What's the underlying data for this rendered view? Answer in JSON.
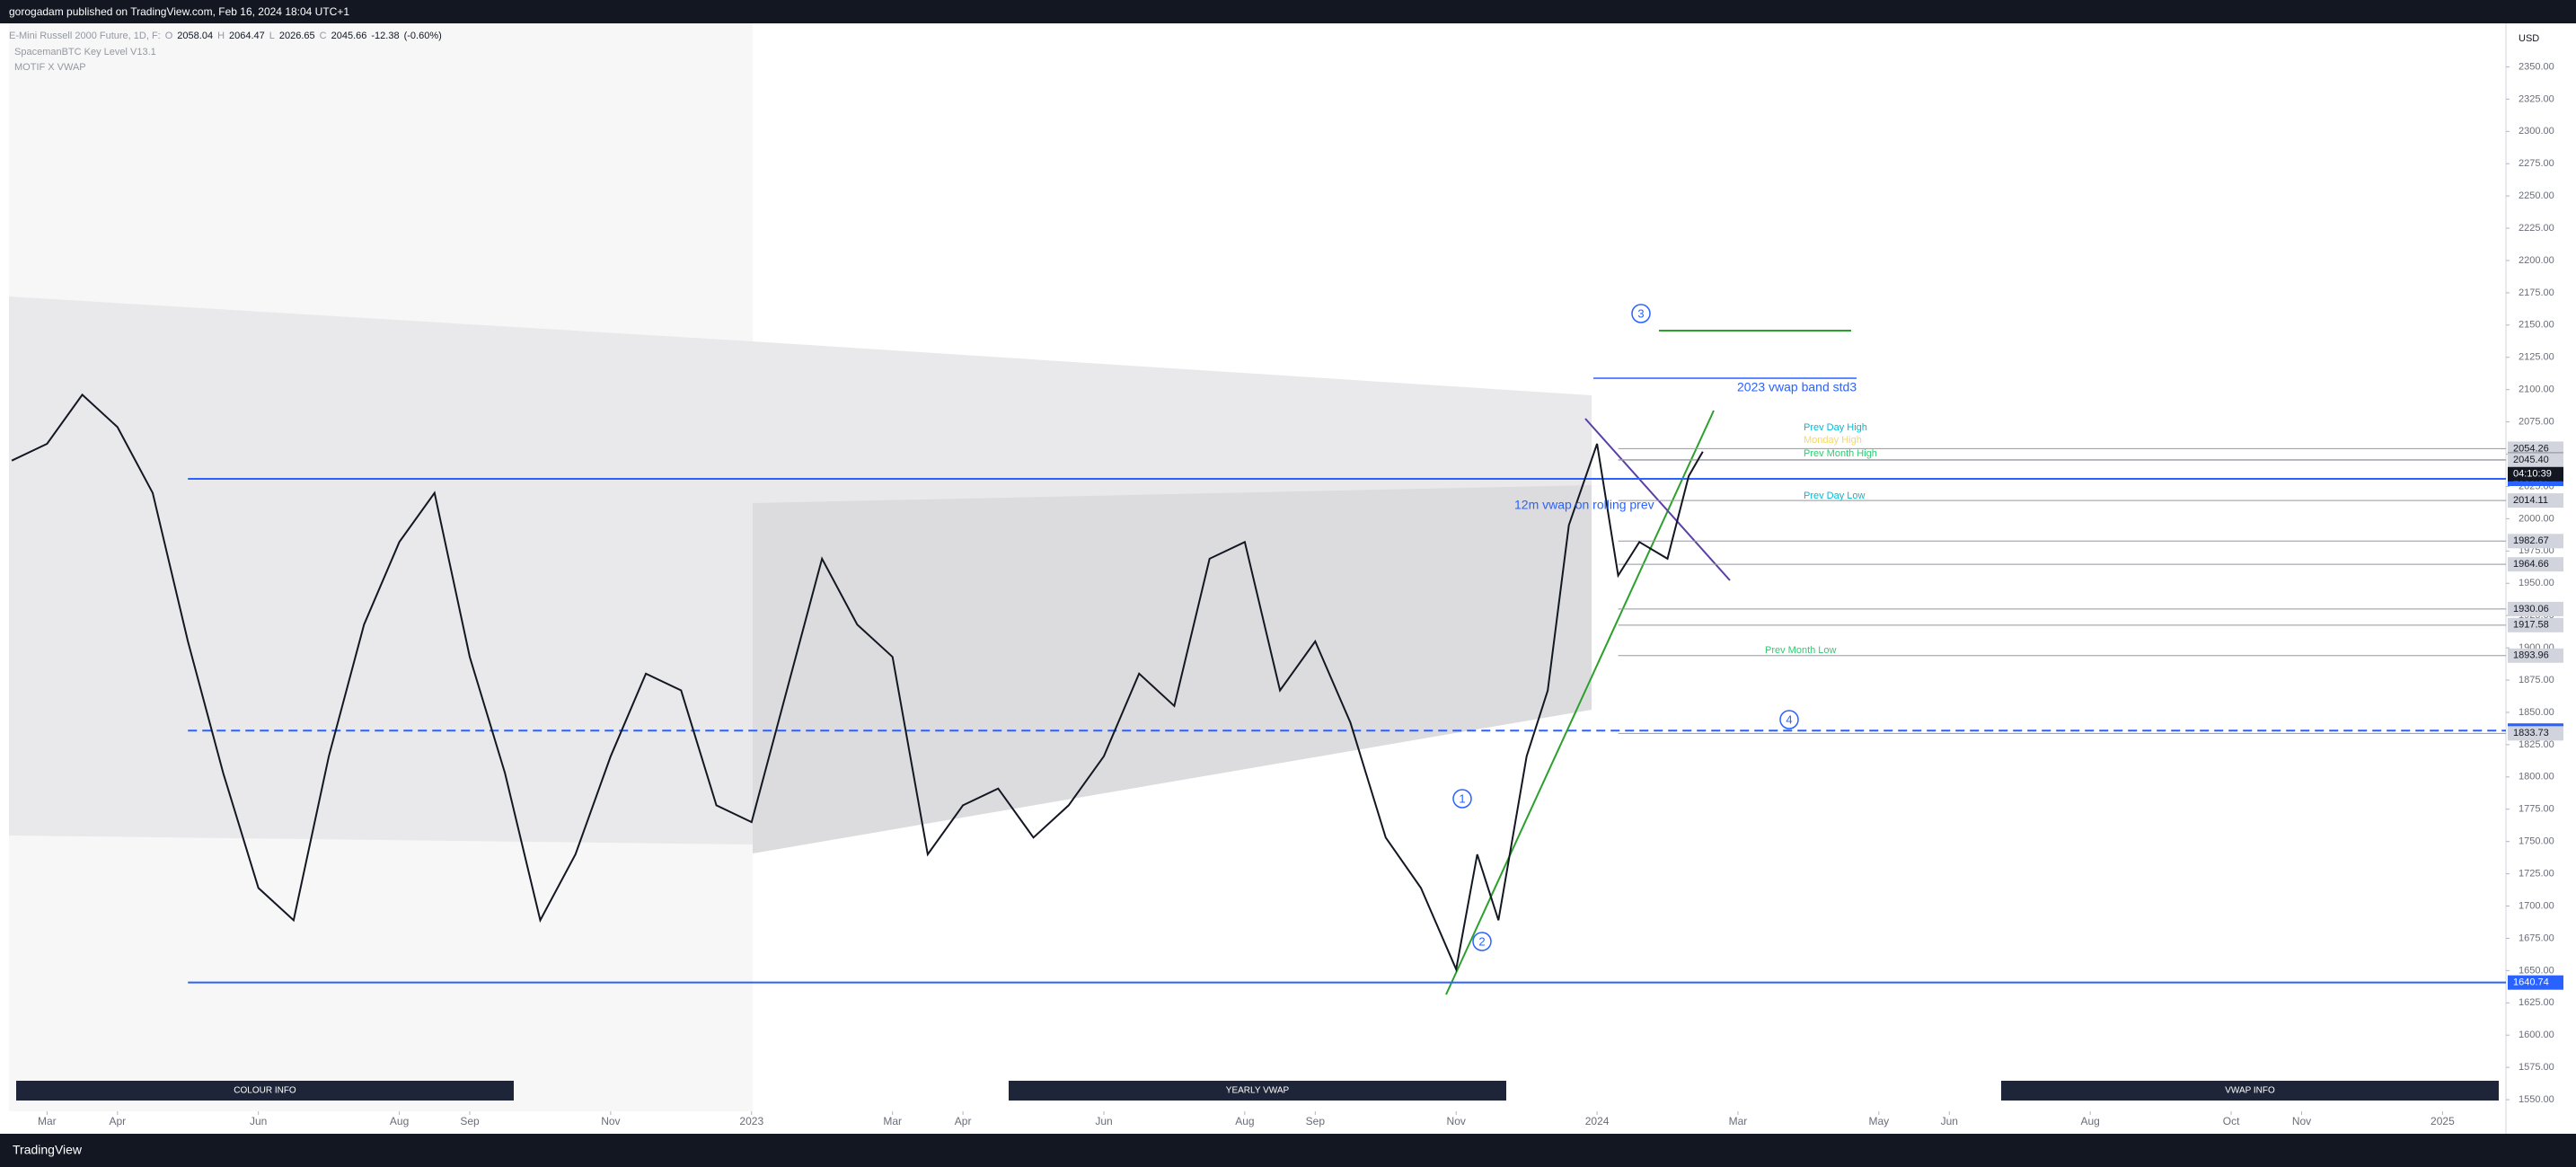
{
  "header": {
    "title": "gorogadam published on TradingView.com, Feb 16, 2024 18:04 UTC+1",
    "brand": "TradingView"
  },
  "chart_data": {
    "type": "line",
    "legend": {
      "symbol": "E-Mini Russell 2000 Future, 1D, F:",
      "open_label": "O",
      "open": 2058.04,
      "high_label": "H",
      "high": 2064.47,
      "low_label": "L",
      "low": 2026.65,
      "close_label": "C",
      "close": 2045.66,
      "change": {
        "value": -12.38,
        "label": "-12.38"
      },
      "change_pct": {
        "value": -0.6,
        "label": "(-0.60%)"
      },
      "indicators": [
        "SpacemanBTC Key Level V13.1",
        "MOTIF X VWAP"
      ]
    },
    "currency": "USD",
    "countdown": "04:10:39",
    "series": [
      {
        "color": "#131722",
        "x": [
          -0.5,
          0,
          0.5,
          1,
          1.5,
          2,
          2.5,
          3,
          3.5,
          4,
          4.5,
          5,
          5.5,
          6,
          6.5,
          7,
          7.5,
          8,
          8.5,
          9,
          9.5,
          10,
          10.5,
          11,
          11.5,
          12,
          12.5,
          13,
          13.5,
          14,
          14.5,
          15,
          15.5,
          16,
          16.5,
          17,
          17.5,
          18,
          18.5,
          19,
          19.5,
          20,
          20.3,
          20.6,
          21,
          21.3,
          21.6,
          22,
          22.3,
          22.6,
          23,
          23.3,
          23.5
        ],
        "values": [
          2045,
          2058,
          2096,
          2071,
          2020,
          1905,
          1803,
          1714,
          1689,
          1816,
          1918,
          1982,
          2020,
          1893,
          1803,
          1689,
          1740,
          1816,
          1880,
          1867,
          1778,
          1765,
          1867,
          1969,
          1918,
          1893,
          1740,
          1778,
          1791,
          1753,
          1778,
          1816,
          1880,
          1855,
          1969,
          1982,
          1867,
          1905,
          1842,
          1753,
          1714,
          1651,
          1740,
          1689,
          1816,
          1867,
          1995,
          2058,
          1956,
          1982,
          1969,
          2033,
          2052
        ]
      }
    ],
    "xlim": [
      -0.54,
      34.9
    ],
    "xticks": [
      {
        "value": 0,
        "label": "Mar"
      },
      {
        "value": 1,
        "label": "Apr"
      },
      {
        "value": 3,
        "label": "Jun"
      },
      {
        "value": 5,
        "label": "Aug"
      },
      {
        "value": 6,
        "label": "Sep"
      },
      {
        "value": 8,
        "label": "Nov"
      },
      {
        "value": 10,
        "label": "2023"
      },
      {
        "value": 12,
        "label": "Mar"
      },
      {
        "value": 13,
        "label": "Apr"
      },
      {
        "value": 15,
        "label": "Jun"
      },
      {
        "value": 17,
        "label": "Aug"
      },
      {
        "value": 18,
        "label": "Sep"
      },
      {
        "value": 20,
        "label": "Nov"
      },
      {
        "value": 22,
        "label": "2024"
      },
      {
        "value": 24,
        "label": "Mar"
      },
      {
        "value": 26,
        "label": "May"
      },
      {
        "value": 27,
        "label": "Jun"
      },
      {
        "value": 29,
        "label": "Aug"
      },
      {
        "value": 31,
        "label": "Oct"
      },
      {
        "value": 32,
        "label": "Nov"
      },
      {
        "value": 34,
        "label": "2025"
      }
    ],
    "ylim": [
      1541,
      2383
    ],
    "yticks": [
      {
        "value": 1550,
        "label": "1550.00"
      },
      {
        "value": 1575,
        "label": "1575.00"
      },
      {
        "value": 1600,
        "label": "1600.00"
      },
      {
        "value": 1625,
        "label": "1625.00"
      },
      {
        "value": 1650,
        "label": "1650.00"
      },
      {
        "value": 1675,
        "label": "1675.00"
      },
      {
        "value": 1700,
        "label": "1700.00"
      },
      {
        "value": 1725,
        "label": "1725.00"
      },
      {
        "value": 1750,
        "label": "1750.00"
      },
      {
        "value": 1775,
        "label": "1775.00"
      },
      {
        "value": 1800,
        "label": "1800.00"
      },
      {
        "value": 1825,
        "label": "1825.00"
      },
      {
        "value": 1850,
        "label": "1850.00"
      },
      {
        "value": 1875,
        "label": "1875.00"
      },
      {
        "value": 1900,
        "label": "1900.00"
      },
      {
        "value": 1925,
        "label": "1925.00"
      },
      {
        "value": 1950,
        "label": "1950.00"
      },
      {
        "value": 1975,
        "label": "1975.00"
      },
      {
        "value": 2000,
        "label": "2000.00"
      },
      {
        "value": 2025,
        "label": "2025.00"
      },
      {
        "value": 2050,
        "label": "2050.00"
      },
      {
        "value": 2075,
        "label": "2075.00"
      },
      {
        "value": 2100,
        "label": "2100.00"
      },
      {
        "value": 2125,
        "label": "2125.00"
      },
      {
        "value": 2150,
        "label": "2150.00"
      },
      {
        "value": 2175,
        "label": "2175.00"
      },
      {
        "value": 2200,
        "label": "2200.00"
      },
      {
        "value": 2225,
        "label": "2225.00"
      },
      {
        "value": 2250,
        "label": "2250.00"
      },
      {
        "value": 2275,
        "label": "2275.00"
      },
      {
        "value": 2300,
        "label": "2300.00"
      },
      {
        "value": 2325,
        "label": "2325.00"
      },
      {
        "value": 2350,
        "label": "2350.00"
      }
    ],
    "levels": [
      2054.26,
      2045.66,
      {
        "value": 2045.4,
        "label": "2045.40"
      },
      2030.87,
      2014.11,
      1982.67,
      1964.66,
      {
        "value": 1930.06,
        "label": "1930.06"
      },
      1917.58,
      1893.96,
      1835.91,
      1833.73,
      1640.74
    ],
    "level_colors": [
      "#787b86",
      "#131722",
      "#787b86",
      "#2962ff",
      "#787b86",
      "#787b86",
      "#787b86",
      "#787b86",
      "#787b86",
      "#787b86",
      "#2962ff",
      "#787b86",
      "#2962ff"
    ],
    "annotations": [
      {
        "text": "Prev Day High",
        "color": "#00bcd4"
      },
      {
        "text": "Monday High",
        "color": "#f5d76e"
      },
      {
        "text": "Prev Month High",
        "color": "#2ecc71"
      },
      {
        "text": "Prev Day Low",
        "color": "#00bcd4"
      },
      {
        "text": "Prev Month Low",
        "color": "#2ecc71"
      },
      {
        "text": "2023 vwap band std3",
        "color": "#2962ff"
      },
      {
        "text": "12m vwap on rolling prev",
        "color": "#2962ff"
      }
    ],
    "markers": [
      "1",
      "2",
      "3",
      "4"
    ],
    "info_boxes": [
      "COLOUR INFO",
      "YEARLY VWAP",
      "VWAP INFO"
    ]
  }
}
